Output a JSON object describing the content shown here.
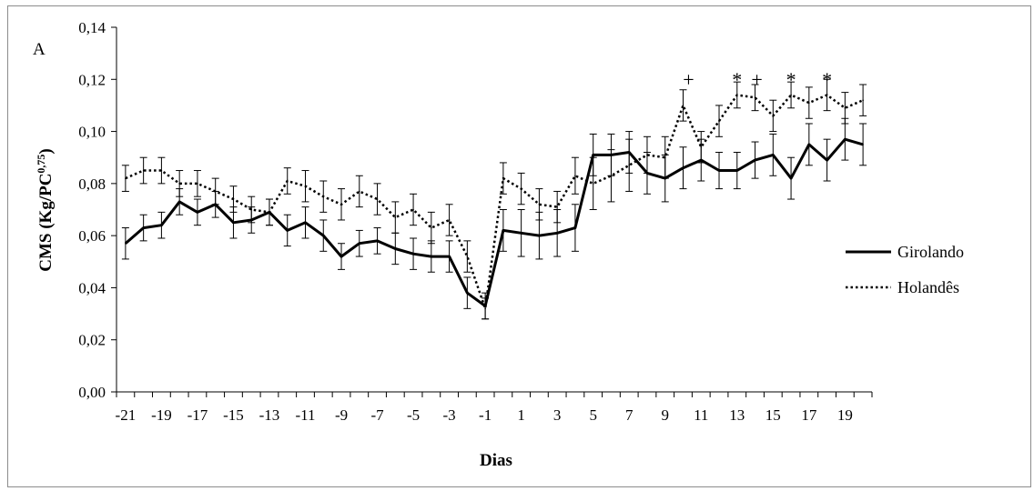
{
  "chart_data": {
    "type": "line",
    "panel_label": "A",
    "xlabel": "Dias",
    "ylabel": "CMS (Kg/PC",
    "ylabel_superscript": "0,75",
    "ylabel_suffix": ")",
    "ylim": [
      0,
      0.14
    ],
    "yticks": [
      "0,00",
      "0,02",
      "0,04",
      "0,06",
      "0,08",
      "0,10",
      "0,12",
      "0,14"
    ],
    "x": [
      -21,
      -20,
      -19,
      -18,
      -17,
      -16,
      -15,
      -14,
      -13,
      -12,
      -11,
      -10,
      -9,
      -8,
      -7,
      -6,
      -5,
      -4,
      -3,
      -2,
      -1,
      0,
      1,
      2,
      3,
      4,
      5,
      6,
      7,
      8,
      9,
      10,
      11,
      12,
      13,
      14,
      15,
      16,
      17,
      18,
      19,
      20
    ],
    "xticks": [
      -21,
      -19,
      -17,
      -15,
      -13,
      -11,
      -9,
      -7,
      -5,
      -3,
      -1,
      1,
      3,
      5,
      7,
      9,
      11,
      13,
      15,
      17,
      19
    ],
    "series": [
      {
        "name": "Girolando",
        "style": "solid",
        "color": "#000000",
        "values": [
          0.057,
          0.063,
          0.064,
          0.073,
          0.069,
          0.072,
          0.065,
          0.066,
          0.069,
          0.062,
          0.065,
          0.06,
          0.052,
          0.057,
          0.058,
          0.055,
          0.053,
          0.052,
          0.052,
          0.038,
          0.033,
          0.062,
          0.061,
          0.06,
          0.061,
          0.063,
          0.091,
          0.091,
          0.092,
          0.084,
          0.082,
          0.086,
          0.089,
          0.085,
          0.085,
          0.089,
          0.091,
          0.082,
          0.095,
          0.089,
          0.097,
          0.095
        ],
        "errors": [
          0.006,
          0.005,
          0.005,
          0.005,
          0.005,
          0.005,
          0.006,
          0.005,
          0.005,
          0.006,
          0.006,
          0.006,
          0.005,
          0.005,
          0.005,
          0.006,
          0.006,
          0.006,
          0.006,
          0.006,
          0.005,
          0.008,
          0.009,
          0.009,
          0.009,
          0.009,
          0.008,
          0.008,
          0.008,
          0.008,
          0.009,
          0.008,
          0.008,
          0.007,
          0.007,
          0.007,
          0.008,
          0.008,
          0.008,
          0.008,
          0.008,
          0.008
        ]
      },
      {
        "name": "Holandês",
        "style": "dotted",
        "color": "#000000",
        "values": [
          0.082,
          0.085,
          0.085,
          0.08,
          0.08,
          0.077,
          0.074,
          0.07,
          0.069,
          0.081,
          0.079,
          0.075,
          0.072,
          0.077,
          0.074,
          0.067,
          0.07,
          0.063,
          0.066,
          0.052,
          0.032,
          0.082,
          0.078,
          0.072,
          0.071,
          0.083,
          0.08,
          0.083,
          0.087,
          0.091,
          0.09,
          0.11,
          0.094,
          0.104,
          0.114,
          0.113,
          0.106,
          0.114,
          0.111,
          0.114,
          0.109,
          0.112
        ],
        "errors": [
          0.005,
          0.005,
          0.005,
          0.005,
          0.005,
          0.005,
          0.005,
          0.005,
          0.005,
          0.005,
          0.006,
          0.006,
          0.006,
          0.006,
          0.006,
          0.006,
          0.006,
          0.006,
          0.006,
          0.006,
          0.004,
          0.006,
          0.006,
          0.006,
          0.006,
          0.007,
          0.01,
          0.01,
          0.01,
          0.007,
          0.008,
          0.006,
          0.006,
          0.006,
          0.005,
          0.005,
          0.006,
          0.005,
          0.006,
          0.006,
          0.006,
          0.006
        ]
      }
    ],
    "annotations": [
      {
        "x": 10.3,
        "text": "+"
      },
      {
        "x": 13,
        "text": "*"
      },
      {
        "x": 14.1,
        "text": "+"
      },
      {
        "x": 16,
        "text": "*"
      },
      {
        "x": 18,
        "text": "*"
      }
    ],
    "grid": false,
    "legend_position": "right"
  }
}
